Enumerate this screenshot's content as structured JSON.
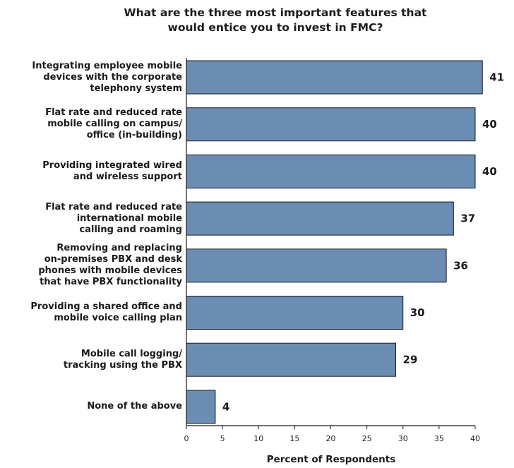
{
  "chart_data": {
    "type": "bar",
    "orientation": "horizontal",
    "title": "What are the three most important features that would entice you to invest in FMC?",
    "xlabel": "Percent of Respondents",
    "ylabel": "",
    "xlim": [
      0,
      40
    ],
    "xticks": [
      "0",
      "5",
      "10",
      "15",
      "20",
      "25",
      "30",
      "35",
      "40"
    ],
    "grid": false,
    "bar_color": "#6b8db4",
    "bar_border_color": "#1a1a1a",
    "categories": [
      "Integrating employee mobile devices with the corporate telephony system",
      "Flat rate and reduced rate mobile calling on campus/ office (in-building)",
      "Providing integrated wired and wireless support",
      "Flat rate and reduced rate international mobile calling and roaming",
      "Removing and replacing on-premises PBX and desk phones with mobile devices that have PBX functionality",
      "Providing a shared office and mobile voice calling plan",
      "Mobile call logging/ tracking using the PBX",
      "None of the above"
    ],
    "category_lines": [
      [
        "Integrating employee mobile",
        "devices with the corporate",
        "telephony system"
      ],
      [
        "Flat rate and reduced rate",
        "mobile calling on campus/",
        "office (in-building)"
      ],
      [
        "Providing integrated wired",
        "and wireless support"
      ],
      [
        "Flat rate and reduced rate",
        "international mobile",
        "calling and roaming"
      ],
      [
        "Removing and replacing",
        "on-premises PBX and desk",
        "phones with mobile devices",
        "that have PBX functionality"
      ],
      [
        "Providing a shared office and",
        "mobile voice calling plan"
      ],
      [
        "Mobile call logging/",
        "tracking using the PBX"
      ],
      [
        "None of the above"
      ]
    ],
    "values": [
      41,
      40,
      40,
      37,
      36,
      30,
      29,
      4
    ],
    "value_labels": [
      "41",
      "40",
      "40",
      "37",
      "36",
      "30",
      "29",
      "4"
    ]
  }
}
